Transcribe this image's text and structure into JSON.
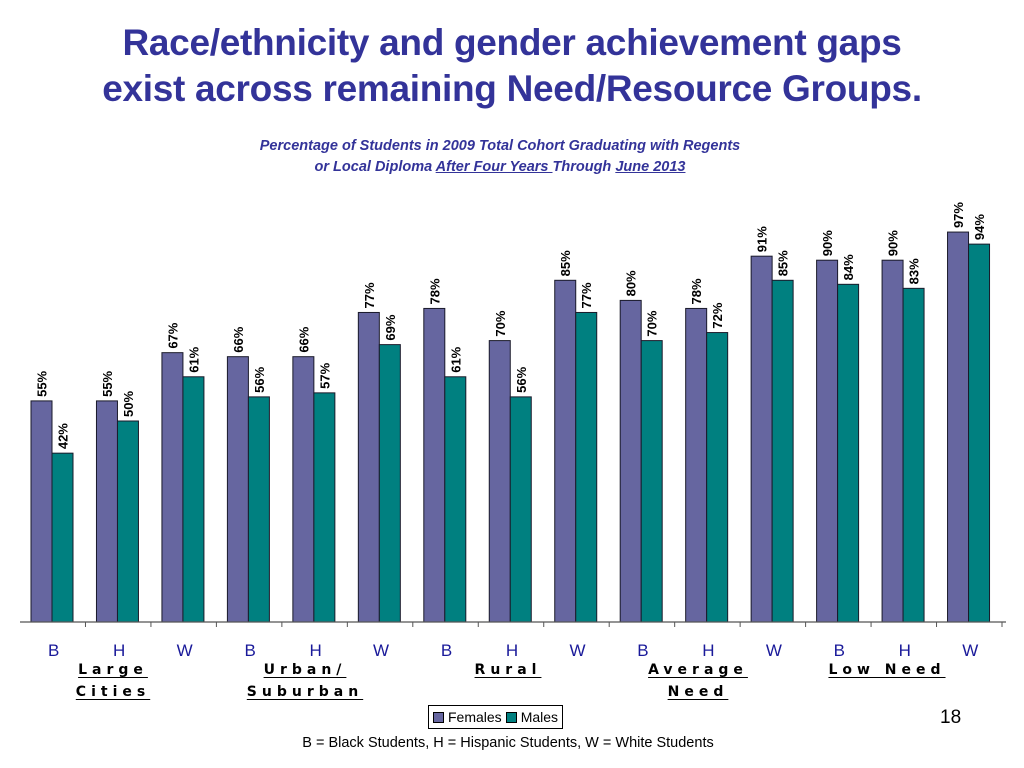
{
  "slide": {
    "title_line1": "Race/ethnicity and gender achievement gaps",
    "title_line2": "exist across remaining Need/Resource Groups.",
    "subtitle_line1": "Percentage of Students in 2009 Total Cohort Graduating with Regents",
    "subtitle_line2_pre": "or Local Diploma ",
    "subtitle_line2_u1": "After Four Years ",
    "subtitle_line2_mid": "Through ",
    "subtitle_line2_u2": "June 2013",
    "page_number": "18",
    "footnote": "B = Black Students, H = Hispanic Students, W = White Students"
  },
  "chart_data": {
    "type": "bar",
    "title": "Percentage of Students in 2009 Total Cohort Graduating with Regents or Local Diploma After Four Years Through June 2013",
    "xlabel": "",
    "ylabel": "",
    "ylim": [
      0,
      100
    ],
    "grid": false,
    "legend_position": "bottom-center",
    "value_format": "percent",
    "groups": [
      "Large Cities",
      "Urban/ Suburban",
      "Rural",
      "Average Need",
      "Low Need"
    ],
    "group_labels": [
      {
        "line1": "Large",
        "line2": "Cities"
      },
      {
        "line1": "Urban/",
        "line2": "Suburban"
      },
      {
        "line1": "Rural",
        "line2": ""
      },
      {
        "line1": "Average",
        "line2": "Need"
      },
      {
        "line1": "Low Need",
        "line2": ""
      }
    ],
    "categories": [
      "B",
      "H",
      "W",
      "B",
      "H",
      "W",
      "B",
      "H",
      "W",
      "B",
      "H",
      "W",
      "B",
      "H",
      "W"
    ],
    "series": [
      {
        "name": "Females",
        "color": "#6666a0",
        "values": [
          55,
          55,
          67,
          66,
          66,
          77,
          78,
          70,
          85,
          80,
          78,
          91,
          90,
          90,
          97
        ]
      },
      {
        "name": "Males",
        "color": "#008080",
        "values": [
          42,
          50,
          61,
          56,
          57,
          69,
          61,
          56,
          77,
          70,
          72,
          85,
          84,
          83,
          94
        ]
      }
    ],
    "legend": [
      "Females",
      "Males"
    ]
  }
}
